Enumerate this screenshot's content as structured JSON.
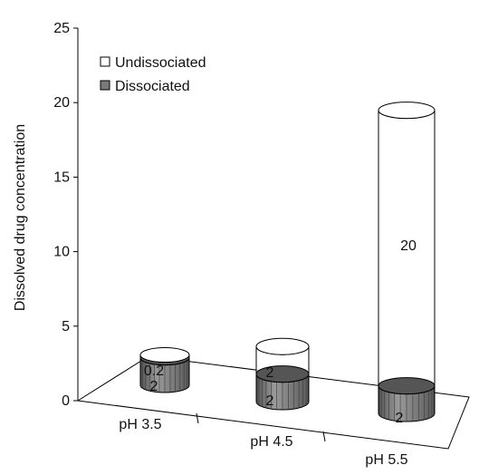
{
  "chart_data": {
    "type": "bar",
    "style": "3d stacked cylinder",
    "title": "",
    "xlabel": "",
    "ylabel": "Dissolved drug concentration",
    "ylim": [
      0,
      25
    ],
    "yticks": [
      "0",
      "5",
      "10",
      "15",
      "20",
      "25"
    ],
    "categories": [
      "pH 3.5",
      "pH 4.5",
      "pH 5.5"
    ],
    "series": [
      {
        "name": "Dissociated",
        "values": [
          2,
          2,
          2
        ],
        "color": "#7a7a7a",
        "labels": [
          "2",
          "2",
          "2"
        ]
      },
      {
        "name": "Undissociated",
        "values": [
          0.2,
          2,
          20
        ],
        "color": "#ffffff",
        "labels": [
          "0.2",
          "2",
          "20"
        ]
      }
    ],
    "legend": {
      "position": "top-left",
      "items": [
        "Undissociated",
        "Dissociated"
      ]
    },
    "grid": false
  }
}
